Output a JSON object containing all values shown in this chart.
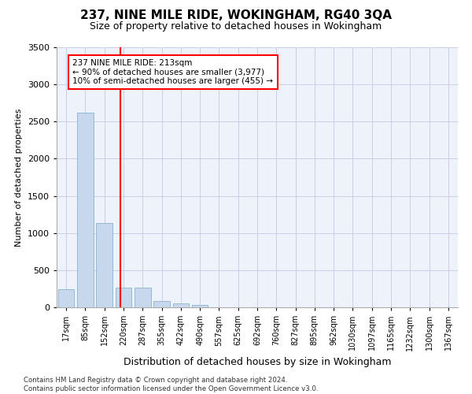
{
  "title": "237, NINE MILE RIDE, WOKINGHAM, RG40 3QA",
  "subtitle": "Size of property relative to detached houses in Wokingham",
  "xlabel": "Distribution of detached houses by size in Wokingham",
  "ylabel": "Number of detached properties",
  "bar_color": "#c8d8ec",
  "bar_edge_color": "#7aaac8",
  "categories": [
    "17sqm",
    "85sqm",
    "152sqm",
    "220sqm",
    "287sqm",
    "355sqm",
    "422sqm",
    "490sqm",
    "557sqm",
    "625sqm",
    "692sqm",
    "760sqm",
    "827sqm",
    "895sqm",
    "962sqm",
    "1030sqm",
    "1097sqm",
    "1165sqm",
    "1232sqm",
    "1300sqm",
    "1367sqm"
  ],
  "values": [
    240,
    2620,
    1130,
    270,
    270,
    90,
    50,
    30,
    0,
    0,
    0,
    0,
    0,
    0,
    0,
    0,
    0,
    0,
    0,
    0,
    0
  ],
  "ylim": [
    0,
    3500
  ],
  "yticks": [
    0,
    500,
    1000,
    1500,
    2000,
    2500,
    3000,
    3500
  ],
  "annotation_text": "237 NINE MILE RIDE: 213sqm\n← 90% of detached houses are smaller (3,977)\n10% of semi-detached houses are larger (455) →",
  "annotation_box_color": "white",
  "annotation_box_edge": "red",
  "vline_color": "red",
  "footnote": "Contains HM Land Registry data © Crown copyright and database right 2024.\nContains public sector information licensed under the Open Government Licence v3.0.",
  "background_color": "#eef2fb",
  "grid_color": "#c8cfe8",
  "title_fontsize": 11,
  "subtitle_fontsize": 9
}
